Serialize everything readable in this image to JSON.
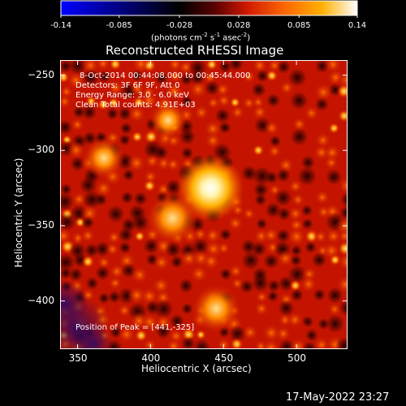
{
  "colorbar": {
    "ticks": [
      "-0.14",
      "-0.085",
      "-0.028",
      "0.028",
      "0.085",
      "0.14"
    ],
    "units_main": "(photons cm",
    "units_exp1": "-2",
    "units_mid1": " s",
    "units_exp2": "-1",
    "units_mid2": " asec",
    "units_exp3": "-2",
    "units_end": ")",
    "colors": [
      "#0000ff",
      "#000000",
      "#5a0000",
      "#d01a00",
      "#ff6a00",
      "#ffb000",
      "#ffffff"
    ]
  },
  "plot": {
    "title": "Reconstructed RHESSI Image",
    "xlabel": "Heliocentric X (arcsec)",
    "ylabel": "Heliocentric Y (arcsec)",
    "info_lines": [
      "8-Oct-2014 00:44:08.000 to 00:45:44.000",
      "Detectors: 3F 6F 9F, Att 0",
      "Energy Range: 3.0 - 6.0 keV",
      "Clean    Total counts: 4.91E+03"
    ],
    "peak_text": "Position of Peak = [441,-325]",
    "timestamp": "17-May-2022 23:27"
  },
  "chart_data": {
    "type": "heatmap",
    "title": "Reconstructed RHESSI Image",
    "xlabel": "Heliocentric X (arcsec)",
    "ylabel": "Heliocentric Y (arcsec)",
    "xlim": [
      338,
      535
    ],
    "ylim": [
      -432,
      -240
    ],
    "x_ticks": [
      350,
      400,
      450,
      500
    ],
    "y_ticks": [
      -250,
      -300,
      -350,
      -400
    ],
    "colorbar_range": [
      -0.14,
      0.14
    ],
    "colorbar_ticks": [
      -0.14,
      -0.085,
      -0.028,
      0.028,
      0.085,
      0.14
    ],
    "peak": [
      441,
      -325
    ],
    "sources": [
      {
        "x": 441,
        "y": -325,
        "intensity": 0.14
      },
      {
        "x": 415,
        "y": -345,
        "intensity": 0.1
      },
      {
        "x": 445,
        "y": -405,
        "intensity": 0.09
      },
      {
        "x": 368,
        "y": -305,
        "intensity": 0.07
      },
      {
        "x": 412,
        "y": -280,
        "intensity": 0.06
      }
    ]
  }
}
